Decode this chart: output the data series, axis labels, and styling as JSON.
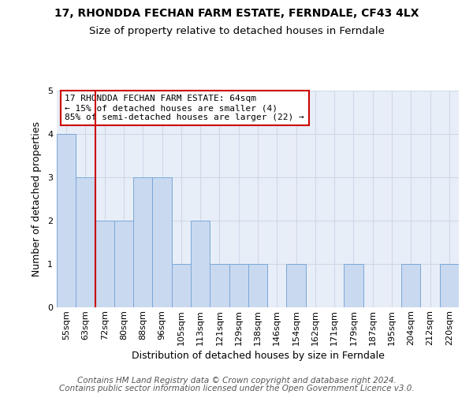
{
  "title": "17, RHONDDA FECHAN FARM ESTATE, FERNDALE, CF43 4LX",
  "subtitle": "Size of property relative to detached houses in Ferndale",
  "xlabel": "Distribution of detached houses by size in Ferndale",
  "ylabel": "Number of detached properties",
  "footer1": "Contains HM Land Registry data © Crown copyright and database right 2024.",
  "footer2": "Contains public sector information licensed under the Open Government Licence v3.0.",
  "annotation_line1": "17 RHONDDA FECHAN FARM ESTATE: 64sqm",
  "annotation_line2": "← 15% of detached houses are smaller (4)",
  "annotation_line3": "85% of semi-detached houses are larger (22) →",
  "bar_labels": [
    "55sqm",
    "63sqm",
    "72sqm",
    "80sqm",
    "88sqm",
    "96sqm",
    "105sqm",
    "113sqm",
    "121sqm",
    "129sqm",
    "138sqm",
    "146sqm",
    "154sqm",
    "162sqm",
    "171sqm",
    "179sqm",
    "187sqm",
    "195sqm",
    "204sqm",
    "212sqm",
    "220sqm"
  ],
  "bar_values": [
    4,
    3,
    2,
    2,
    3,
    3,
    1,
    2,
    1,
    1,
    1,
    0,
    1,
    0,
    0,
    1,
    0,
    0,
    1,
    0,
    1
  ],
  "bar_color": "#c9d9f0",
  "bar_edge_color": "#7aa8d8",
  "red_line_x": 1.5,
  "ylim": [
    0,
    5
  ],
  "yticks": [
    0,
    1,
    2,
    3,
    4,
    5
  ],
  "grid_color": "#d0d8e8",
  "bg_color": "#e8eef8",
  "annotation_box_edge": "#cc0000",
  "red_line_color": "#cc0000",
  "title_fontsize": 10,
  "subtitle_fontsize": 9.5,
  "axis_label_fontsize": 9,
  "tick_fontsize": 8,
  "annotation_fontsize": 8,
  "footer_fontsize": 7.5
}
